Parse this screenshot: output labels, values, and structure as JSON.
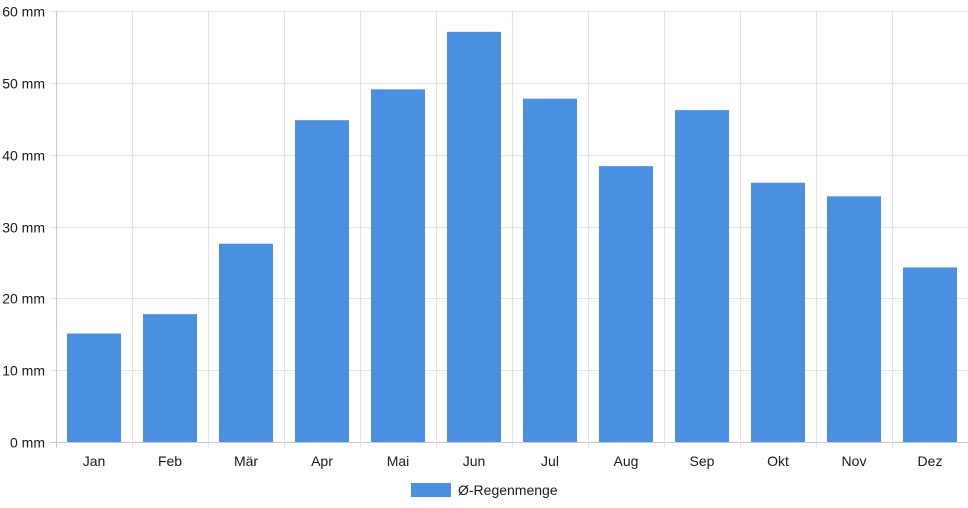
{
  "chart_data": {
    "type": "bar",
    "categories": [
      "Jan",
      "Feb",
      "Mär",
      "Apr",
      "Mai",
      "Jun",
      "Jul",
      "Aug",
      "Sep",
      "Okt",
      "Nov",
      "Dez"
    ],
    "series": [
      {
        "name": "Ø-Regenmenge",
        "color": "#4a90e2",
        "values": [
          15.1,
          17.8,
          27.6,
          44.8,
          49.1,
          57.1,
          47.8,
          38.4,
          46.2,
          36.1,
          34.2,
          24.3
        ]
      }
    ],
    "yticks": [
      "0 mm",
      "10 mm",
      "20 mm",
      "30 mm",
      "40 mm",
      "50 mm",
      "60 mm"
    ],
    "ylim": [
      0,
      60
    ],
    "grid": true,
    "legend_position": "bottom"
  }
}
